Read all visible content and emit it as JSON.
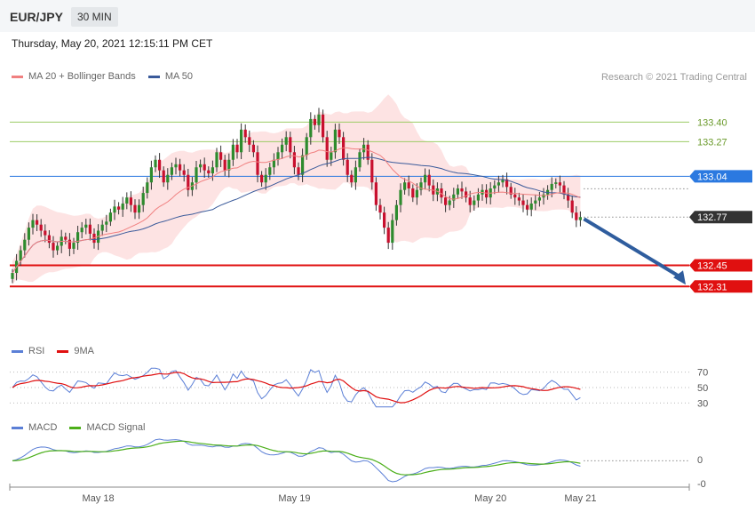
{
  "header": {
    "symbol": "EUR/JPY",
    "timeframe": "30 MIN",
    "timestamp": "Thursday, May 20, 2021 12:15:11 PM CET",
    "credit": "Research © 2021 Trading Central"
  },
  "colors": {
    "bull": "#2e8b2e",
    "bear": "#c8102e",
    "ma20": "#f08080",
    "ma50": "#3a5a9a",
    "bands": "#fde3e3",
    "resistance": "#9ccc65",
    "pivot": "#2b79e0",
    "support": "#e01010",
    "current": "#333333",
    "arrow": "#2f5d9e",
    "rsi": "#5b7fd6",
    "rsi_ma": "#e01010",
    "macd": "#5b7fd6",
    "macd_signal": "#4caf1a"
  },
  "chart_data": [
    {
      "type": "candlestick",
      "title": "EUR/JPY 30 MIN",
      "legend": [
        {
          "label": "MA 20 + Bollinger Bands",
          "color": "#f08080"
        },
        {
          "label": "MA 50",
          "color": "#3a5a9a"
        }
      ],
      "x_ticks": [
        {
          "label": "May 18",
          "index": 21
        },
        {
          "label": "May 19",
          "index": 69
        },
        {
          "label": "May 20",
          "index": 117
        },
        {
          "label": "May 21",
          "index": 139
        }
      ],
      "price_range": [
        131.97,
        133.62
      ],
      "levels": [
        {
          "value": 133.4,
          "label": "133.40",
          "kind": "resistance"
        },
        {
          "value": 133.27,
          "label": "133.27",
          "kind": "resistance"
        },
        {
          "value": 133.04,
          "label": "133.04",
          "kind": "pivot"
        },
        {
          "value": 132.77,
          "label": "132.77",
          "kind": "current"
        },
        {
          "value": 132.45,
          "label": "132.45",
          "kind": "support"
        },
        {
          "value": 132.31,
          "label": "132.31",
          "kind": "support"
        }
      ],
      "closes": [
        132.4,
        132.48,
        132.55,
        132.62,
        132.7,
        132.75,
        132.72,
        132.68,
        132.65,
        132.6,
        132.55,
        132.58,
        132.64,
        132.62,
        132.56,
        132.6,
        132.67,
        132.7,
        132.72,
        132.66,
        132.6,
        132.68,
        132.72,
        132.74,
        132.8,
        132.84,
        132.82,
        132.86,
        132.9,
        132.85,
        132.8,
        132.85,
        132.93,
        133.0,
        133.1,
        133.15,
        133.08,
        133.0,
        133.05,
        133.1,
        133.12,
        133.08,
        133.05,
        132.95,
        133.0,
        133.1,
        133.12,
        133.08,
        133.06,
        133.1,
        133.2,
        133.15,
        133.08,
        133.15,
        133.25,
        133.2,
        133.35,
        133.3,
        133.25,
        133.2,
        133.05,
        133.0,
        133.05,
        133.1,
        133.15,
        133.2,
        133.25,
        133.3,
        133.2,
        133.1,
        133.05,
        133.18,
        133.3,
        133.42,
        133.38,
        133.45,
        133.3,
        133.15,
        133.2,
        133.35,
        133.3,
        133.15,
        133.05,
        133.0,
        133.1,
        133.2,
        133.25,
        133.15,
        133.0,
        132.85,
        132.8,
        132.7,
        132.6,
        132.75,
        132.85,
        132.95,
        133.0,
        132.96,
        132.9,
        132.95,
        133.0,
        133.05,
        132.98,
        132.92,
        132.96,
        132.9,
        132.85,
        132.88,
        132.92,
        132.96,
        132.94,
        132.9,
        132.85,
        132.88,
        132.92,
        132.95,
        132.9,
        132.96,
        132.98,
        133.0,
        133.02,
        132.97,
        132.92,
        132.9,
        132.88,
        132.85,
        132.82,
        132.86,
        132.88,
        132.9,
        132.92,
        132.95,
        132.99,
        133.0,
        132.98,
        132.92,
        132.88,
        132.8,
        132.75,
        132.77
      ]
    },
    {
      "type": "line",
      "title": "RSI",
      "series": [
        {
          "name": "RSI",
          "color": "#5b7fd6"
        },
        {
          "name": "9MA",
          "color": "#e01010"
        }
      ],
      "y_ticks": [
        70,
        50,
        30
      ],
      "ylim": [
        20,
        80
      ],
      "rsi_last": 37
    },
    {
      "type": "line",
      "title": "MACD",
      "series": [
        {
          "name": "MACD",
          "color": "#5b7fd6"
        },
        {
          "name": "MACD Signal",
          "color": "#4caf1a"
        }
      ],
      "y_ticks": [
        "0",
        "-0"
      ]
    }
  ]
}
